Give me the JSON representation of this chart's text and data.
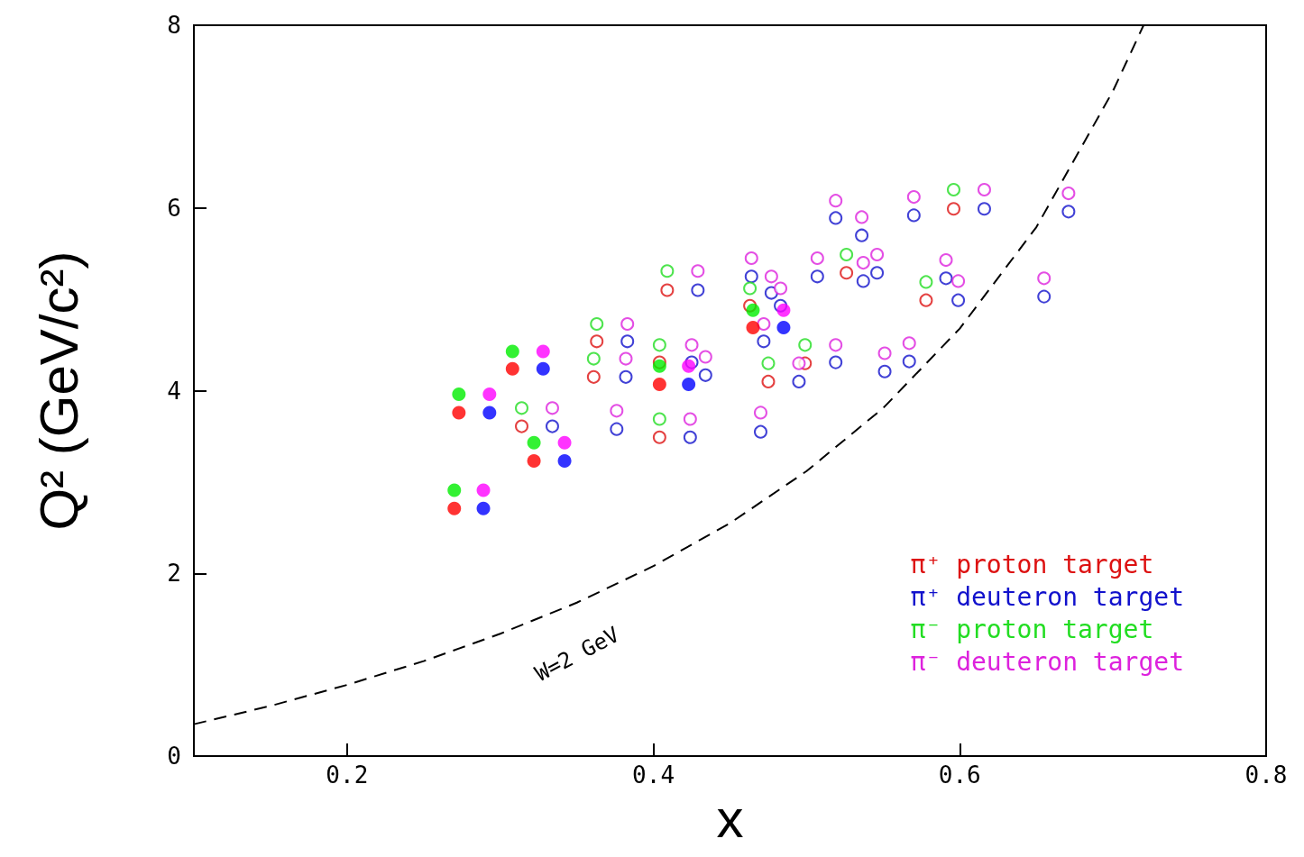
{
  "chart_data": {
    "type": "scatter",
    "xlabel": "x",
    "ylabel": "Q² (GeV/c²)",
    "xlim": [
      0.1,
      0.8
    ],
    "ylim": [
      0,
      8
    ],
    "xticks": [
      0.2,
      0.4,
      0.6,
      0.8
    ],
    "yticks": [
      0,
      2,
      4,
      6,
      8
    ],
    "grid": false,
    "legend": "bottom right",
    "marker": "circle",
    "annotations": [
      "W=2 GeV"
    ],
    "series": [
      {
        "name": "π⁺ proton target",
        "color": "#dd1111",
        "x": [
          0.314,
          0.361,
          0.363,
          0.404,
          0.404,
          0.409,
          0.463,
          0.475,
          0.499,
          0.526,
          0.578,
          0.596
        ],
        "values": [
          3.61,
          4.15,
          4.54,
          3.49,
          4.31,
          5.1,
          4.93,
          4.1,
          4.3,
          5.29,
          4.99,
          5.99
        ]
      },
      {
        "name": "π⁺ deuteron target",
        "color": "#1111cc",
        "x": [
          0.334,
          0.382,
          0.383,
          0.424,
          0.425,
          0.429,
          0.376,
          0.434,
          0.464,
          0.477,
          0.483,
          0.472,
          0.47,
          0.495,
          0.519,
          0.551,
          0.567,
          0.507,
          0.537,
          0.546,
          0.591,
          0.599,
          0.519,
          0.536,
          0.57,
          0.616,
          0.671,
          0.655
        ],
        "values": [
          3.61,
          4.15,
          4.54,
          3.49,
          4.31,
          5.1,
          3.58,
          4.17,
          5.25,
          5.07,
          4.93,
          4.54,
          3.55,
          4.1,
          4.31,
          4.21,
          4.32,
          5.25,
          5.2,
          5.29,
          5.23,
          4.99,
          5.89,
          5.7,
          5.92,
          5.99,
          5.96,
          5.03
        ]
      },
      {
        "name": "π⁻ proton target",
        "color": "#22dd22",
        "x": [
          0.314,
          0.361,
          0.363,
          0.404,
          0.404,
          0.409,
          0.463,
          0.475,
          0.499,
          0.526,
          0.578,
          0.596
        ],
        "values": [
          3.81,
          4.35,
          4.73,
          3.69,
          4.5,
          5.31,
          5.12,
          4.3,
          4.5,
          5.49,
          5.19,
          6.2
        ]
      },
      {
        "name": "π⁻ deuteron target",
        "color": "#dd22dd",
        "x": [
          0.334,
          0.382,
          0.383,
          0.424,
          0.425,
          0.429,
          0.376,
          0.434,
          0.464,
          0.477,
          0.483,
          0.472,
          0.47,
          0.495,
          0.519,
          0.551,
          0.567,
          0.507,
          0.537,
          0.546,
          0.591,
          0.599,
          0.519,
          0.536,
          0.57,
          0.616,
          0.671,
          0.655
        ],
        "values": [
          3.81,
          4.35,
          4.73,
          3.69,
          4.5,
          5.31,
          3.78,
          4.37,
          5.45,
          5.25,
          5.12,
          4.73,
          3.76,
          4.3,
          4.5,
          4.41,
          4.52,
          5.45,
          5.4,
          5.49,
          5.43,
          5.2,
          6.08,
          5.9,
          6.12,
          6.2,
          6.16,
          5.23
        ]
      },
      {
        "color": "#ff0000",
        "marker": "circle",
        "x": [
          0.27,
          0.273,
          0.308,
          0.322,
          0.404,
          0.465
        ],
        "values": [
          2.71,
          3.76,
          4.24,
          3.23,
          4.07,
          4.69
        ]
      },
      {
        "color": "#0000ff",
        "marker": "circle",
        "x": [
          0.289,
          0.293,
          0.328,
          0.342,
          0.423,
          0.485
        ],
        "values": [
          2.71,
          3.76,
          4.24,
          3.23,
          4.07,
          4.69
        ]
      },
      {
        "color": "#00ee00",
        "marker": "circle",
        "x": [
          0.27,
          0.273,
          0.308,
          0.322,
          0.404,
          0.465
        ],
        "values": [
          2.91,
          3.96,
          4.43,
          3.43,
          4.27,
          4.88
        ]
      },
      {
        "color": "#ff00ff",
        "marker": "circle",
        "x": [
          0.289,
          0.293,
          0.328,
          0.342,
          0.423,
          0.485
        ],
        "values": [
          2.91,
          3.96,
          4.43,
          3.43,
          4.27,
          4.88
        ]
      },
      {
        "type": "line",
        "color": "#000000",
        "line_style": "dashed",
        "marker": "none",
        "x": [
          0.1,
          0.15,
          0.2,
          0.25,
          0.3,
          0.35,
          0.4,
          0.45,
          0.5,
          0.55,
          0.6,
          0.65,
          0.7,
          0.72
        ],
        "values": [
          0.35,
          0.55,
          0.78,
          1.04,
          1.34,
          1.68,
          2.08,
          2.55,
          3.12,
          3.81,
          4.68,
          5.79,
          7.28,
          8.0
        ]
      }
    ]
  }
}
